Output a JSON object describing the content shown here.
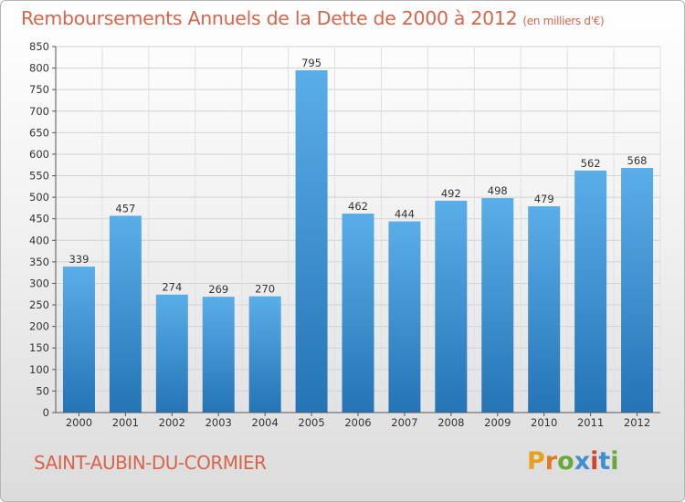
{
  "header": {
    "title": "Remboursements Annuels de la Dette de 2000 à 2012",
    "subtitle": "(en milliers d'€)"
  },
  "footer": {
    "town": "SAINT-AUBIN-DU-CORMIER",
    "logo_letters": [
      "P",
      "r",
      "o",
      "x",
      "i",
      "t",
      "i"
    ]
  },
  "colors": {
    "title": "#d9644a",
    "bar_top": "#5aaee8",
    "bar_bottom": "#2474b6"
  },
  "chart_data": {
    "type": "bar",
    "title": "Remboursements Annuels de la Dette de 2000 à 2012",
    "subtitle": "(en milliers d'€)",
    "categories": [
      "2000",
      "2001",
      "2002",
      "2003",
      "2004",
      "2005",
      "2006",
      "2007",
      "2008",
      "2009",
      "2010",
      "2011",
      "2012"
    ],
    "values": [
      339,
      457,
      274,
      269,
      270,
      795,
      462,
      444,
      492,
      498,
      479,
      562,
      568
    ],
    "ylim": [
      0,
      850
    ],
    "yticks": [
      0,
      50,
      100,
      150,
      200,
      250,
      300,
      350,
      400,
      450,
      500,
      550,
      600,
      650,
      700,
      750,
      800,
      850
    ],
    "grid": true
  }
}
